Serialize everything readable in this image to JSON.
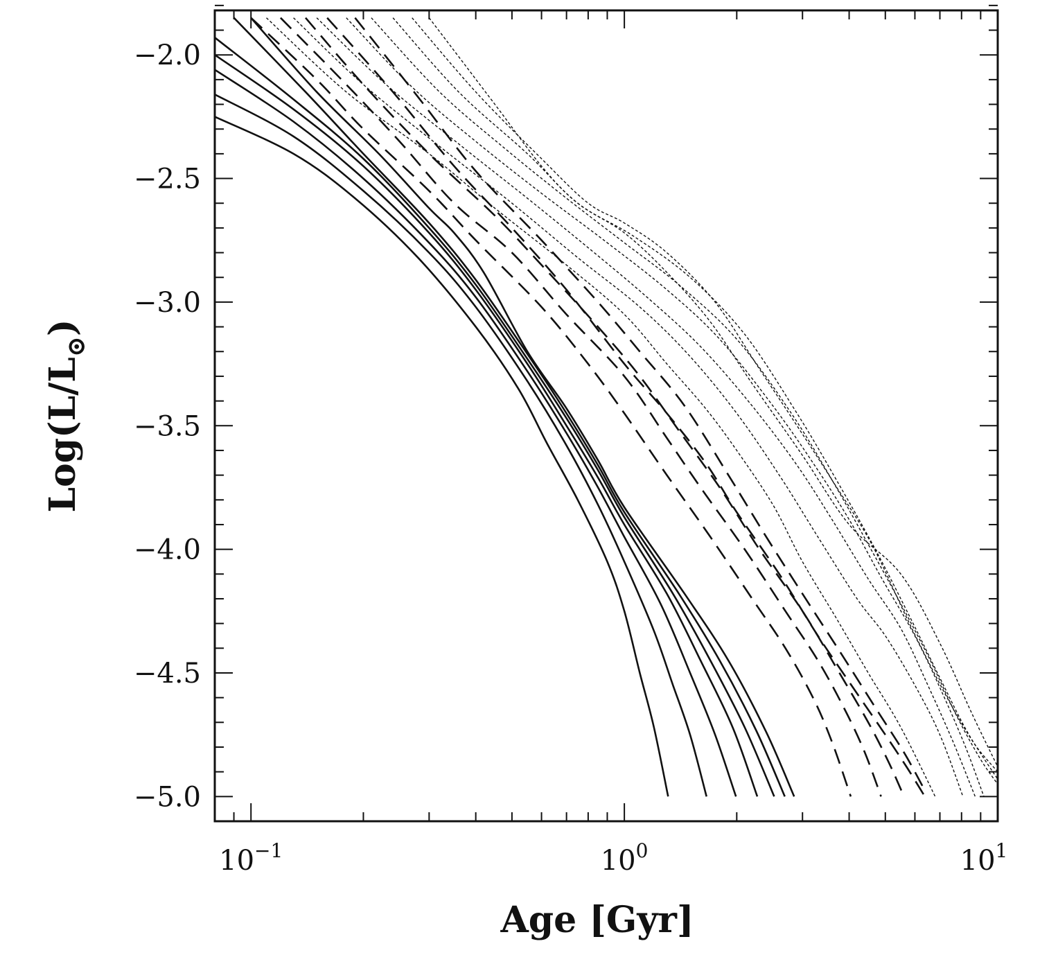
{
  "chart_data": {
    "type": "line",
    "title": "",
    "xlabel": "Age [Gyr]",
    "ylabel_main": "Log(L/L",
    "ylabel_sub": "⊙",
    "ylabel_close": ")",
    "x_scale": "log",
    "xlim": [
      0.08,
      10
    ],
    "ylim": [
      -5.1,
      -1.82
    ],
    "grid": false,
    "legend": "none",
    "x_ticks": [
      {
        "value": 0.1,
        "base": "10",
        "exp": "−1"
      },
      {
        "value": 1,
        "base": "10",
        "exp": "0"
      },
      {
        "value": 10,
        "base": "10",
        "exp": "1"
      }
    ],
    "y_ticks": [
      {
        "value": -2.0,
        "label": "−2.0"
      },
      {
        "value": -2.5,
        "label": "−2.5"
      },
      {
        "value": -3.0,
        "label": "−3.0"
      },
      {
        "value": -3.5,
        "label": "−3.5"
      },
      {
        "value": -4.0,
        "label": "−4.0"
      },
      {
        "value": -4.5,
        "label": "−4.5"
      },
      {
        "value": -5.0,
        "label": "−5.0"
      }
    ],
    "line_color": "#111111",
    "series": [
      {
        "style": "solid",
        "points": [
          [
            0.08,
            -2.25
          ],
          [
            0.13,
            -2.4
          ],
          [
            0.19,
            -2.58
          ],
          [
            0.28,
            -2.82
          ],
          [
            0.4,
            -3.1
          ],
          [
            0.52,
            -3.35
          ],
          [
            0.62,
            -3.57
          ],
          [
            0.75,
            -3.8
          ],
          [
            0.9,
            -4.05
          ],
          [
            1.0,
            -4.25
          ],
          [
            1.1,
            -4.5
          ],
          [
            1.2,
            -4.72
          ],
          [
            1.31,
            -5.0
          ]
        ]
      },
      {
        "style": "solid",
        "points": [
          [
            0.08,
            -2.16
          ],
          [
            0.13,
            -2.33
          ],
          [
            0.2,
            -2.55
          ],
          [
            0.3,
            -2.8
          ],
          [
            0.4,
            -3.02
          ],
          [
            0.55,
            -3.32
          ],
          [
            0.7,
            -3.58
          ],
          [
            0.85,
            -3.82
          ],
          [
            1.0,
            -4.05
          ],
          [
            1.2,
            -4.33
          ],
          [
            1.35,
            -4.55
          ],
          [
            1.5,
            -4.75
          ],
          [
            1.66,
            -5.0
          ]
        ]
      },
      {
        "style": "solid",
        "points": [
          [
            0.08,
            -2.06
          ],
          [
            0.13,
            -2.27
          ],
          [
            0.2,
            -2.5
          ],
          [
            0.3,
            -2.76
          ],
          [
            0.4,
            -2.98
          ],
          [
            0.55,
            -3.28
          ],
          [
            0.7,
            -3.53
          ],
          [
            0.85,
            -3.75
          ],
          [
            1.0,
            -3.95
          ],
          [
            1.25,
            -4.22
          ],
          [
            1.5,
            -4.5
          ],
          [
            1.75,
            -4.75
          ],
          [
            1.99,
            -5.0
          ]
        ]
      },
      {
        "style": "solid",
        "points": [
          [
            0.08,
            -2.0
          ],
          [
            0.13,
            -2.22
          ],
          [
            0.2,
            -2.45
          ],
          [
            0.3,
            -2.72
          ],
          [
            0.4,
            -2.95
          ],
          [
            0.55,
            -3.25
          ],
          [
            0.7,
            -3.5
          ],
          [
            0.85,
            -3.71
          ],
          [
            1.0,
            -3.9
          ],
          [
            1.3,
            -4.18
          ],
          [
            1.6,
            -4.45
          ],
          [
            1.95,
            -4.72
          ],
          [
            2.27,
            -5.0
          ]
        ]
      },
      {
        "style": "solid",
        "points": [
          [
            0.08,
            -1.93
          ],
          [
            0.13,
            -2.18
          ],
          [
            0.2,
            -2.42
          ],
          [
            0.3,
            -2.7
          ],
          [
            0.4,
            -2.93
          ],
          [
            0.55,
            -3.23
          ],
          [
            0.7,
            -3.47
          ],
          [
            0.85,
            -3.68
          ],
          [
            1.0,
            -3.87
          ],
          [
            1.35,
            -4.18
          ],
          [
            1.7,
            -4.45
          ],
          [
            2.1,
            -4.72
          ],
          [
            2.52,
            -5.0
          ]
        ]
      },
      {
        "style": "solid",
        "points": [
          [
            0.09,
            -1.85
          ],
          [
            0.14,
            -2.15
          ],
          [
            0.2,
            -2.4
          ],
          [
            0.3,
            -2.68
          ],
          [
            0.4,
            -2.91
          ],
          [
            0.55,
            -3.21
          ],
          [
            0.7,
            -3.45
          ],
          [
            0.85,
            -3.66
          ],
          [
            1.0,
            -3.85
          ],
          [
            1.4,
            -4.18
          ],
          [
            1.8,
            -4.45
          ],
          [
            2.25,
            -4.73
          ],
          [
            2.69,
            -5.0
          ]
        ]
      },
      {
        "style": "solid",
        "points": [
          [
            0.1,
            -1.85
          ],
          [
            0.15,
            -2.15
          ],
          [
            0.22,
            -2.4
          ],
          [
            0.3,
            -2.62
          ],
          [
            0.35,
            -2.72
          ],
          [
            0.42,
            -2.88
          ],
          [
            0.55,
            -3.2
          ],
          [
            0.7,
            -3.43
          ],
          [
            0.85,
            -3.64
          ],
          [
            1.0,
            -3.83
          ],
          [
            1.45,
            -4.18
          ],
          [
            1.9,
            -4.45
          ],
          [
            2.4,
            -4.74
          ],
          [
            2.85,
            -5.0
          ]
        ]
      },
      {
        "style": "dashed",
        "points": [
          [
            0.1,
            -1.85
          ],
          [
            0.15,
            -2.1
          ],
          [
            0.2,
            -2.3
          ],
          [
            0.3,
            -2.55
          ],
          [
            0.4,
            -2.75
          ],
          [
            0.6,
            -3.02
          ],
          [
            0.8,
            -3.25
          ],
          [
            1.0,
            -3.45
          ],
          [
            1.3,
            -3.7
          ],
          [
            1.7,
            -3.95
          ],
          [
            2.2,
            -4.2
          ],
          [
            2.7,
            -4.4
          ],
          [
            3.2,
            -4.6
          ],
          [
            3.6,
            -4.78
          ],
          [
            4.04,
            -5.0
          ]
        ]
      },
      {
        "style": "dashed",
        "points": [
          [
            0.12,
            -1.85
          ],
          [
            0.18,
            -2.12
          ],
          [
            0.25,
            -2.35
          ],
          [
            0.35,
            -2.6
          ],
          [
            0.5,
            -2.8
          ],
          [
            0.7,
            -3.05
          ],
          [
            1.0,
            -3.3
          ],
          [
            1.3,
            -3.55
          ],
          [
            1.6,
            -3.75
          ],
          [
            2.1,
            -4.0
          ],
          [
            2.7,
            -4.25
          ],
          [
            3.3,
            -4.45
          ],
          [
            3.9,
            -4.65
          ],
          [
            4.4,
            -4.82
          ],
          [
            4.87,
            -5.0
          ]
        ]
      },
      {
        "style": "dashed",
        "points": [
          [
            0.14,
            -1.85
          ],
          [
            0.2,
            -2.12
          ],
          [
            0.3,
            -2.4
          ],
          [
            0.45,
            -2.65
          ],
          [
            0.6,
            -2.85
          ],
          [
            0.85,
            -3.1
          ],
          [
            1.1,
            -3.3
          ],
          [
            1.4,
            -3.52
          ],
          [
            1.8,
            -3.75
          ],
          [
            2.3,
            -4.0
          ],
          [
            3.0,
            -4.25
          ],
          [
            3.7,
            -4.48
          ],
          [
            4.5,
            -4.7
          ],
          [
            5.1,
            -4.86
          ],
          [
            5.61,
            -5.0
          ]
        ]
      },
      {
        "style": "dashed",
        "points": [
          [
            0.16,
            -1.85
          ],
          [
            0.24,
            -2.15
          ],
          [
            0.35,
            -2.45
          ],
          [
            0.5,
            -2.7
          ],
          [
            0.7,
            -2.95
          ],
          [
            1.0,
            -3.25
          ],
          [
            1.3,
            -3.45
          ],
          [
            1.65,
            -3.65
          ],
          [
            2.0,
            -3.85
          ],
          [
            2.6,
            -4.1
          ],
          [
            3.3,
            -4.35
          ],
          [
            4.1,
            -4.56
          ],
          [
            5.0,
            -4.75
          ],
          [
            5.7,
            -4.88
          ],
          [
            6.38,
            -5.0
          ]
        ]
      },
      {
        "style": "dashed",
        "points": [
          [
            0.19,
            -1.85
          ],
          [
            0.28,
            -2.17
          ],
          [
            0.4,
            -2.47
          ],
          [
            0.6,
            -2.75
          ],
          [
            0.85,
            -3.0
          ],
          [
            1.1,
            -3.2
          ],
          [
            1.45,
            -3.42
          ],
          [
            1.9,
            -3.7
          ],
          [
            2.4,
            -3.95
          ],
          [
            3.0,
            -4.18
          ],
          [
            3.8,
            -4.42
          ],
          [
            4.7,
            -4.64
          ],
          [
            5.6,
            -4.82
          ],
          [
            6.3,
            -4.96
          ]
        ]
      },
      {
        "style": "dotted",
        "points": [
          [
            0.11,
            -1.85
          ],
          [
            0.18,
            -2.15
          ],
          [
            0.3,
            -2.4
          ],
          [
            0.45,
            -2.62
          ],
          [
            0.7,
            -2.85
          ],
          [
            1.0,
            -3.05
          ],
          [
            1.3,
            -3.25
          ],
          [
            1.65,
            -3.43
          ],
          [
            2.0,
            -3.6
          ],
          [
            2.5,
            -3.82
          ],
          [
            3.0,
            -4.05
          ],
          [
            3.7,
            -4.28
          ],
          [
            4.5,
            -4.5
          ],
          [
            5.5,
            -4.72
          ],
          [
            6.8,
            -5.0
          ]
        ]
      },
      {
        "style": "dotted",
        "points": [
          [
            0.13,
            -1.85
          ],
          [
            0.2,
            -2.12
          ],
          [
            0.32,
            -2.37
          ],
          [
            0.5,
            -2.6
          ],
          [
            0.75,
            -2.82
          ],
          [
            1.1,
            -3.02
          ],
          [
            1.5,
            -3.22
          ],
          [
            2.0,
            -3.45
          ],
          [
            2.6,
            -3.7
          ],
          [
            3.3,
            -3.95
          ],
          [
            4.2,
            -4.2
          ],
          [
            5.0,
            -4.35
          ],
          [
            6.0,
            -4.55
          ],
          [
            7.0,
            -4.75
          ],
          [
            8.07,
            -5.0
          ]
        ]
      },
      {
        "style": "dotted",
        "points": [
          [
            0.15,
            -1.85
          ],
          [
            0.23,
            -2.12
          ],
          [
            0.36,
            -2.36
          ],
          [
            0.55,
            -2.58
          ],
          [
            0.8,
            -2.78
          ],
          [
            1.15,
            -2.98
          ],
          [
            1.6,
            -3.18
          ],
          [
            2.2,
            -3.42
          ],
          [
            2.9,
            -3.66
          ],
          [
            3.6,
            -3.88
          ],
          [
            4.5,
            -4.12
          ],
          [
            5.5,
            -4.32
          ],
          [
            6.5,
            -4.55
          ],
          [
            7.6,
            -4.78
          ],
          [
            8.7,
            -5.0
          ]
        ]
      },
      {
        "style": "dotted",
        "points": [
          [
            0.18,
            -1.85
          ],
          [
            0.27,
            -2.13
          ],
          [
            0.4,
            -2.35
          ],
          [
            0.6,
            -2.56
          ],
          [
            0.9,
            -2.76
          ],
          [
            1.3,
            -2.95
          ],
          [
            1.8,
            -3.15
          ],
          [
            2.5,
            -3.42
          ],
          [
            3.2,
            -3.65
          ],
          [
            4.0,
            -3.88
          ],
          [
            4.9,
            -4.12
          ],
          [
            6.0,
            -4.35
          ],
          [
            7.1,
            -4.58
          ],
          [
            8.2,
            -4.8
          ],
          [
            9.18,
            -5.0
          ]
        ]
      },
      {
        "style": "dotted",
        "points": [
          [
            0.21,
            -1.85
          ],
          [
            0.32,
            -2.15
          ],
          [
            0.48,
            -2.38
          ],
          [
            0.7,
            -2.58
          ],
          [
            1.0,
            -2.76
          ],
          [
            1.4,
            -2.93
          ],
          [
            2.0,
            -3.15
          ],
          [
            2.8,
            -3.45
          ],
          [
            3.6,
            -3.72
          ],
          [
            4.5,
            -3.98
          ],
          [
            5.5,
            -4.22
          ],
          [
            6.6,
            -4.45
          ],
          [
            7.8,
            -4.68
          ],
          [
            9.0,
            -4.85
          ],
          [
            10,
            -4.95
          ]
        ]
      },
      {
        "style": "dotted",
        "points": [
          [
            0.24,
            -1.85
          ],
          [
            0.36,
            -2.15
          ],
          [
            0.55,
            -2.4
          ],
          [
            0.75,
            -2.6
          ],
          [
            1.05,
            -2.73
          ],
          [
            1.5,
            -2.9
          ],
          [
            2.1,
            -3.13
          ],
          [
            2.9,
            -3.45
          ],
          [
            3.7,
            -3.72
          ],
          [
            4.7,
            -4.0
          ],
          [
            5.8,
            -4.27
          ],
          [
            7.0,
            -4.52
          ],
          [
            8.3,
            -4.74
          ],
          [
            10,
            -4.93
          ]
        ]
      },
      {
        "style": "dotted",
        "points": [
          [
            0.27,
            -1.85
          ],
          [
            0.4,
            -2.15
          ],
          [
            0.6,
            -2.42
          ],
          [
            0.8,
            -2.6
          ],
          [
            1.0,
            -2.68
          ],
          [
            1.3,
            -2.8
          ],
          [
            1.75,
            -3.0
          ],
          [
            2.3,
            -3.27
          ],
          [
            2.9,
            -3.5
          ],
          [
            3.6,
            -3.72
          ],
          [
            4.6,
            -3.98
          ],
          [
            5.8,
            -4.3
          ],
          [
            7.2,
            -4.58
          ],
          [
            8.6,
            -4.78
          ],
          [
            10,
            -4.9
          ]
        ]
      },
      {
        "style": "dotted",
        "points": [
          [
            0.3,
            -1.85
          ],
          [
            0.45,
            -2.2
          ],
          [
            0.6,
            -2.45
          ],
          [
            0.75,
            -2.6
          ],
          [
            1.0,
            -2.72
          ],
          [
            1.3,
            -2.88
          ],
          [
            1.7,
            -3.08
          ],
          [
            2.2,
            -3.33
          ],
          [
            3.0,
            -3.62
          ],
          [
            4.0,
            -3.9
          ],
          [
            5.5,
            -4.1
          ],
          [
            7.0,
            -4.38
          ],
          [
            8.5,
            -4.66
          ],
          [
            10,
            -4.88
          ]
        ]
      }
    ]
  }
}
